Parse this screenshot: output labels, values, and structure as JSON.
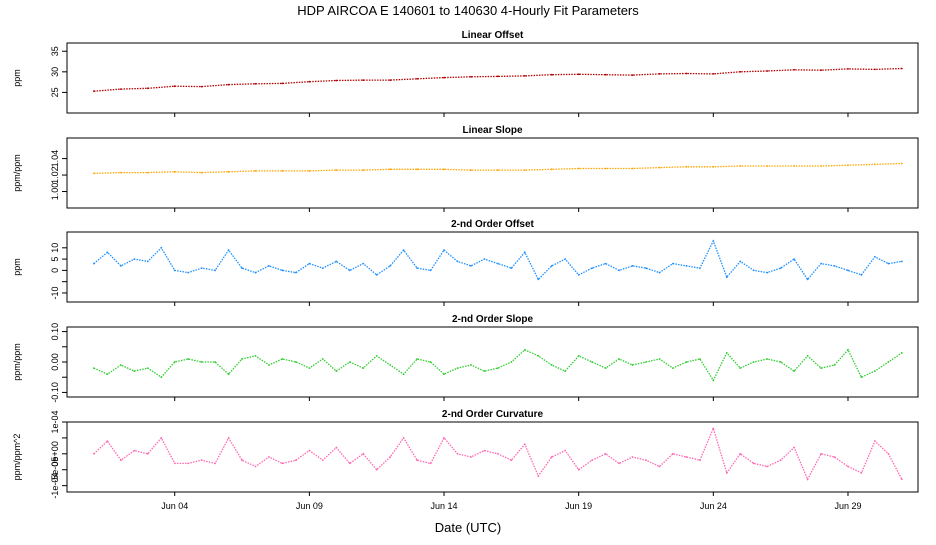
{
  "title": "HDP   AIRCOA E   140601 to 140630   4-Hourly Fit Parameters",
  "x_axis": {
    "label": "Date (UTC)",
    "ticks": [
      "Jun 04",
      "Jun 09",
      "Jun 14",
      "Jun 19",
      "Jun 24",
      "Jun 29"
    ],
    "tick_days": [
      4,
      9,
      14,
      19,
      24,
      29
    ],
    "range_days": [
      0,
      31.6
    ]
  },
  "chart_data": [
    {
      "type": "line",
      "title": "Linear Offset",
      "ylabel": "ppm",
      "ylim": [
        20,
        37
      ],
      "yticks": [
        25,
        30,
        35
      ],
      "ytick_labels": [
        "25",
        "30",
        "35"
      ],
      "color": "#b30000",
      "series": [
        {
          "x": [
            1.0,
            2.0,
            3.0,
            4.0,
            5.0,
            6.0,
            7.0,
            8.0,
            9.0,
            10.0,
            11.0,
            12.0,
            13.0,
            14.0,
            15.0,
            16.0,
            17.0,
            18.0,
            19.0,
            20.0,
            21.0,
            22.0,
            23.0,
            24.0,
            25.0,
            26.0,
            27.0,
            28.0,
            29.0,
            30.0,
            31.0
          ],
          "y": [
            25.3,
            25.8,
            26.0,
            26.5,
            26.4,
            26.9,
            27.1,
            27.2,
            27.6,
            27.9,
            28.0,
            28.0,
            28.3,
            28.6,
            28.8,
            28.9,
            29.0,
            29.3,
            29.4,
            29.3,
            29.2,
            29.5,
            29.6,
            29.5,
            30.0,
            30.2,
            30.5,
            30.4,
            30.7,
            30.6,
            30.8
          ]
        }
      ]
    },
    {
      "type": "line",
      "title": "Linear Slope",
      "ylabel": "ppm/ppm",
      "ylim": [
        0.98,
        1.065
      ],
      "yticks": [
        1.0,
        1.02,
        1.04
      ],
      "ytick_labels": [
        "1.00",
        "1.02",
        "1.04"
      ],
      "color": "#ffa500",
      "series": [
        {
          "x": [
            1.0,
            2.0,
            3.0,
            4.0,
            5.0,
            6.0,
            7.0,
            8.0,
            9.0,
            10.0,
            11.0,
            12.0,
            13.0,
            14.0,
            15.0,
            16.0,
            17.0,
            18.0,
            19.0,
            20.0,
            21.0,
            22.0,
            23.0,
            24.0,
            25.0,
            26.0,
            27.0,
            28.0,
            29.0,
            30.0,
            31.0
          ],
          "y": [
            1.022,
            1.023,
            1.023,
            1.024,
            1.023,
            1.024,
            1.025,
            1.025,
            1.025,
            1.026,
            1.026,
            1.027,
            1.027,
            1.027,
            1.026,
            1.026,
            1.026,
            1.027,
            1.028,
            1.028,
            1.028,
            1.029,
            1.03,
            1.03,
            1.031,
            1.031,
            1.031,
            1.031,
            1.032,
            1.033,
            1.034
          ]
        }
      ]
    },
    {
      "type": "line",
      "title": "2-nd Order Offset",
      "ylabel": "ppm",
      "ylim": [
        -14,
        17
      ],
      "yticks": [
        -10,
        -5,
        0,
        5,
        10
      ],
      "ytick_labels": [
        "-10",
        "",
        "0",
        "5",
        "10"
      ],
      "color": "#1e90ff",
      "series": [
        {
          "x": [
            1.0,
            1.5,
            2.0,
            2.5,
            3.0,
            3.5,
            4.0,
            4.5,
            5.0,
            5.5,
            6.0,
            6.5,
            7.0,
            7.5,
            8.0,
            8.5,
            9.0,
            9.5,
            10.0,
            10.5,
            11.0,
            11.5,
            12.0,
            12.5,
            13.0,
            13.5,
            14.0,
            14.5,
            15.0,
            15.5,
            16.0,
            16.5,
            17.0,
            17.5,
            18.0,
            18.5,
            19.0,
            19.5,
            20.0,
            20.5,
            21.0,
            21.5,
            22.0,
            22.5,
            23.0,
            23.5,
            24.0,
            24.5,
            25.0,
            25.5,
            26.0,
            26.5,
            27.0,
            27.5,
            28.0,
            28.5,
            29.0,
            29.5,
            30.0,
            30.5,
            31.0
          ],
          "y": [
            3,
            8,
            2,
            5,
            4,
            10,
            0,
            -1,
            1,
            0,
            9,
            1,
            -1,
            2,
            0,
            -1,
            3,
            1,
            4,
            0,
            3,
            -2,
            2,
            9,
            1,
            0,
            9,
            4,
            2,
            5,
            3,
            1,
            8,
            -4,
            2,
            5,
            -2,
            1,
            3,
            0,
            2,
            1,
            -1,
            3,
            2,
            1,
            13,
            -3,
            4,
            0,
            -1,
            1,
            5,
            -4,
            3,
            2,
            0,
            -2,
            6,
            3,
            4
          ]
        }
      ]
    },
    {
      "type": "line",
      "title": "2-nd Order Slope",
      "ylabel": "ppm/ppm",
      "ylim": [
        -0.115,
        0.115
      ],
      "yticks": [
        -0.1,
        -0.05,
        0.0,
        0.05,
        0.1
      ],
      "ytick_labels": [
        "-0.10",
        "",
        "0.00",
        "",
        "0.10"
      ],
      "color": "#32cd32",
      "series": [
        {
          "x": [
            1.0,
            1.5,
            2.0,
            2.5,
            3.0,
            3.5,
            4.0,
            4.5,
            5.0,
            5.5,
            6.0,
            6.5,
            7.0,
            7.5,
            8.0,
            8.5,
            9.0,
            9.5,
            10.0,
            10.5,
            11.0,
            11.5,
            12.0,
            12.5,
            13.0,
            13.5,
            14.0,
            14.5,
            15.0,
            15.5,
            16.0,
            16.5,
            17.0,
            17.5,
            18.0,
            18.5,
            19.0,
            19.5,
            20.0,
            20.5,
            21.0,
            21.5,
            22.0,
            22.5,
            23.0,
            23.5,
            24.0,
            24.5,
            25.0,
            25.5,
            26.0,
            26.5,
            27.0,
            27.5,
            28.0,
            28.5,
            29.0,
            29.5,
            30.0,
            30.5,
            31.0
          ],
          "y": [
            -0.02,
            -0.04,
            -0.01,
            -0.03,
            -0.02,
            -0.05,
            0.0,
            0.01,
            0.0,
            0.0,
            -0.04,
            0.01,
            0.02,
            -0.01,
            0.01,
            0.0,
            -0.02,
            0.01,
            -0.03,
            0.0,
            -0.02,
            0.02,
            -0.01,
            -0.04,
            0.01,
            0.0,
            -0.04,
            -0.02,
            -0.01,
            -0.03,
            -0.02,
            0.0,
            0.04,
            0.02,
            -0.01,
            -0.03,
            0.02,
            0.0,
            -0.02,
            0.01,
            -0.01,
            0.0,
            0.01,
            -0.02,
            0.0,
            0.01,
            -0.06,
            0.03,
            -0.02,
            0.0,
            0.01,
            0.0,
            -0.03,
            0.02,
            -0.02,
            -0.01,
            0.04,
            -0.05,
            -0.03,
            0.0,
            0.03
          ]
        }
      ]
    },
    {
      "type": "line",
      "title": "2-nd Order Curvature",
      "ylabel": "ppm/ppm^2",
      "ylim": [
        -0.00012,
        0.0001
      ],
      "yticks": [
        -0.0001,
        -5e-05,
        0.0,
        5e-05,
        0.0001
      ],
      "ytick_labels": [
        "-1e-04",
        "-5e-05",
        "0e+00",
        "",
        "1e-04"
      ],
      "color": "#ff69b4",
      "series": [
        {
          "x": [
            1.0,
            1.5,
            2.0,
            2.5,
            3.0,
            3.5,
            4.0,
            4.5,
            5.0,
            5.5,
            6.0,
            6.5,
            7.0,
            7.5,
            8.0,
            8.5,
            9.0,
            9.5,
            10.0,
            10.5,
            11.0,
            11.5,
            12.0,
            12.5,
            13.0,
            13.5,
            14.0,
            14.5,
            15.0,
            15.5,
            16.0,
            16.5,
            17.0,
            17.5,
            18.0,
            18.5,
            19.0,
            19.5,
            20.0,
            20.5,
            21.0,
            21.5,
            22.0,
            22.5,
            23.0,
            23.5,
            24.0,
            24.5,
            25.0,
            25.5,
            26.0,
            26.5,
            27.0,
            27.5,
            28.0,
            28.5,
            29.0,
            29.5,
            30.0,
            30.5,
            31.0
          ],
          "y": [
            0.0,
            4e-05,
            -2e-05,
            1e-05,
            0.0,
            5e-05,
            -3e-05,
            -3e-05,
            -2e-05,
            -3e-05,
            5e-05,
            -2e-05,
            -4e-05,
            -1e-05,
            -3e-05,
            -2e-05,
            1e-05,
            -2e-05,
            2e-05,
            -3e-05,
            0.0,
            -5e-05,
            -1e-05,
            5e-05,
            -2e-05,
            -3e-05,
            5e-05,
            0.0,
            -1e-05,
            1e-05,
            0.0,
            -2e-05,
            3e-05,
            -7e-05,
            -1e-05,
            1e-05,
            -5e-05,
            -2e-05,
            0.0,
            -3e-05,
            -1e-05,
            -2e-05,
            -4e-05,
            0.0,
            -1e-05,
            -2e-05,
            8e-05,
            -6e-05,
            0.0,
            -3e-05,
            -4e-05,
            -2e-05,
            2e-05,
            -8e-05,
            0.0,
            -1e-05,
            -4e-05,
            -6e-05,
            4e-05,
            0.0,
            -8e-05
          ]
        }
      ]
    }
  ]
}
